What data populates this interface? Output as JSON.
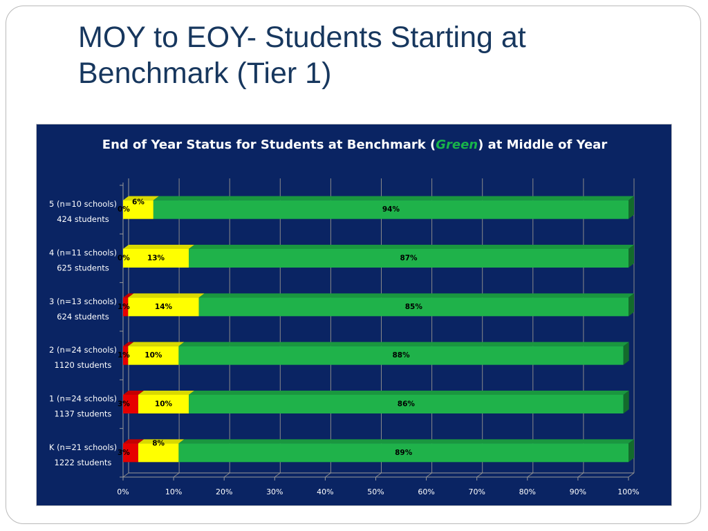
{
  "slide": {
    "title": "MOY to EOY- Students Starting at Benchmark (Tier 1)"
  },
  "chart_data": {
    "type": "bar",
    "orientation": "horizontal",
    "stacked": true,
    "percent_stacked": true,
    "title_parts": {
      "before": "End of Year Status for Students at Benchmark (",
      "accent": "Green",
      "after": ") at Middle of Year"
    },
    "categories": [
      {
        "line1": "5 (n=10 schools)",
        "line2": "424 students"
      },
      {
        "line1": "4 (n=11 schools)",
        "line2": "625 students"
      },
      {
        "line1": "3 (n=13 schools)",
        "line2": "624 students"
      },
      {
        "line1": "2 (n=24 schools)",
        "line2": "1120 students"
      },
      {
        "line1": "1 (n=24 schools)",
        "line2": "1137 students"
      },
      {
        "line1": "K (n=21 schools)",
        "line2": "1222 students"
      }
    ],
    "series": [
      {
        "color": "#e60000",
        "values": [
          0,
          0,
          1,
          1,
          3,
          3
        ],
        "labels": [
          "0%",
          "0%",
          "1%",
          "1%",
          "3%",
          "3%"
        ]
      },
      {
        "color": "#ffff00",
        "values": [
          6,
          13,
          14,
          10,
          10,
          8
        ],
        "labels": [
          "6%",
          "13%",
          "14%",
          "10%",
          "10%",
          "8%"
        ]
      },
      {
        "color": "#1fb24a",
        "values": [
          94,
          87,
          85,
          88,
          86,
          89
        ],
        "labels": [
          "94%",
          "87%",
          "85%",
          "88%",
          "86%",
          "89%"
        ]
      }
    ],
    "xlim": [
      0,
      100
    ],
    "xticks": [
      "0%",
      "10%",
      "20%",
      "30%",
      "40%",
      "50%",
      "60%",
      "70%",
      "80%",
      "90%",
      "100%"
    ],
    "grid": true,
    "legend": "none"
  }
}
